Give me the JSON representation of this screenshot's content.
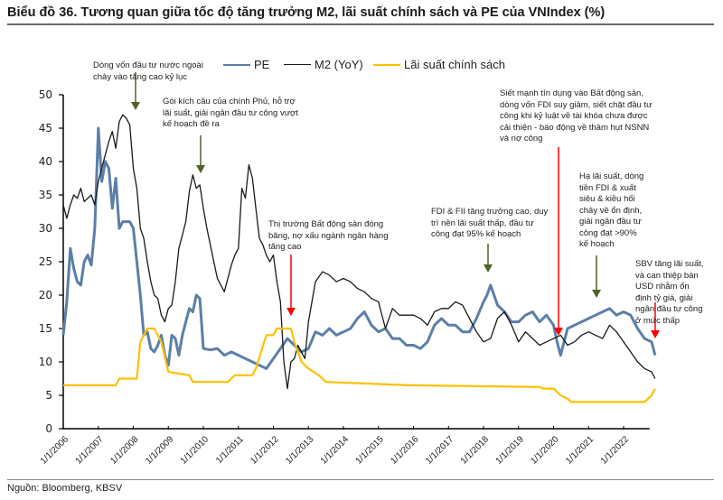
{
  "title": "Biểu đồ 36. Tương quan giữa tốc độ tăng trưởng M2, lãi suất chính sách và PE của VNIndex (%)",
  "source": "Nguồn: Bloomberg, KBSV",
  "chart_data": {
    "type": "line",
    "title": "Biểu đồ 36. Tương quan giữa tốc độ tăng trưởng M2, lãi suất chính sách và PE của VNIndex (%)",
    "xlabel": "",
    "ylabel": "",
    "ylim": [
      0,
      50
    ],
    "yticks": [
      0,
      5,
      10,
      15,
      20,
      25,
      30,
      35,
      40,
      45,
      50
    ],
    "xticks": [
      "1/1/2006",
      "1/1/2007",
      "1/1/2008",
      "1/1/2009",
      "1/1/2010",
      "1/1/2011",
      "1/1/2012",
      "1/1/2013",
      "1/1/2014",
      "1/1/2015",
      "1/1/2016",
      "1/1/2017",
      "1/1/2018",
      "1/1/2019",
      "1/1/2020",
      "1/1/2021",
      "1/1/2022"
    ],
    "xlim": [
      2006.0,
      2023.0
    ],
    "grid": false,
    "legend_position": "top",
    "series": [
      {
        "name": "PE",
        "color": "#5b7fa8",
        "x": [
          2006.0,
          2006.1,
          2006.2,
          2006.3,
          2006.4,
          2006.5,
          2006.6,
          2006.7,
          2006.8,
          2006.9,
          2007.0,
          2007.1,
          2007.2,
          2007.3,
          2007.4,
          2007.5,
          2007.6,
          2007.7,
          2007.8,
          2007.9,
          2008.0,
          2008.1,
          2008.2,
          2008.3,
          2008.4,
          2008.5,
          2008.6,
          2008.7,
          2008.8,
          2008.9,
          2009.0,
          2009.1,
          2009.2,
          2009.3,
          2009.4,
          2009.5,
          2009.6,
          2009.7,
          2009.8,
          2009.9,
          2010.0,
          2010.2,
          2010.4,
          2010.6,
          2010.8,
          2011.0,
          2011.2,
          2011.4,
          2011.6,
          2011.8,
          2012.0,
          2012.2,
          2012.4,
          2012.6,
          2012.8,
          2013.0,
          2013.2,
          2013.4,
          2013.6,
          2013.8,
          2014.0,
          2014.2,
          2014.4,
          2014.6,
          2014.8,
          2015.0,
          2015.2,
          2015.4,
          2015.6,
          2015.8,
          2016.0,
          2016.2,
          2016.4,
          2016.6,
          2016.8,
          2017.0,
          2017.2,
          2017.4,
          2017.6,
          2017.8,
          2018.0,
          2018.1,
          2018.2,
          2018.4,
          2018.6,
          2018.8,
          2019.0,
          2019.2,
          2019.4,
          2019.6,
          2019.8,
          2020.0,
          2020.1,
          2020.2,
          2020.4,
          2020.6,
          2020.8,
          2021.0,
          2021.2,
          2021.4,
          2021.6,
          2021.8,
          2022.0,
          2022.2,
          2022.4,
          2022.6,
          2022.8,
          2022.9
        ],
        "y": [
          14.0,
          19.0,
          27.0,
          24.0,
          22.0,
          21.5,
          25.0,
          26.0,
          24.5,
          30.0,
          45.0,
          37.0,
          40.0,
          39.0,
          33.0,
          37.5,
          30.0,
          31.0,
          31.0,
          31.0,
          30.0,
          25.0,
          20.0,
          14.0,
          14.5,
          12.0,
          11.5,
          12.5,
          14.0,
          11.0,
          9.5,
          14.0,
          13.5,
          11.0,
          14.0,
          16.0,
          18.0,
          17.5,
          20.0,
          19.5,
          12.0,
          11.8,
          12.0,
          11.0,
          11.5,
          11.0,
          10.5,
          10.0,
          9.5,
          9.0,
          10.5,
          12.0,
          13.5,
          12.5,
          11.5,
          12.0,
          14.5,
          14.0,
          15.0,
          14.0,
          14.5,
          15.0,
          16.5,
          17.5,
          15.5,
          14.5,
          15.0,
          13.5,
          13.5,
          12.5,
          12.5,
          12.0,
          13.0,
          15.5,
          16.5,
          15.5,
          15.5,
          14.5,
          14.5,
          16.5,
          19.0,
          20.0,
          21.5,
          18.5,
          17.5,
          16.0,
          16.0,
          17.0,
          17.5,
          16.0,
          17.0,
          15.5,
          13.0,
          11.0,
          15.0,
          15.5,
          16.0,
          16.5,
          17.0,
          17.5,
          18.0,
          17.0,
          17.5,
          17.0,
          15.0,
          13.5,
          13.0,
          11.0
        ]
      },
      {
        "name": "M2 (YoY)",
        "color": "#1a1a1a",
        "x": [
          2006.0,
          2006.1,
          2006.2,
          2006.3,
          2006.4,
          2006.5,
          2006.6,
          2006.7,
          2006.8,
          2006.9,
          2007.0,
          2007.1,
          2007.2,
          2007.3,
          2007.4,
          2007.5,
          2007.6,
          2007.7,
          2007.8,
          2007.9,
          2008.0,
          2008.1,
          2008.2,
          2008.3,
          2008.4,
          2008.5,
          2008.6,
          2008.7,
          2008.8,
          2008.9,
          2009.0,
          2009.1,
          2009.2,
          2009.3,
          2009.4,
          2009.5,
          2009.6,
          2009.7,
          2009.8,
          2009.9,
          2010.0,
          2010.1,
          2010.2,
          2010.3,
          2010.4,
          2010.5,
          2010.6,
          2010.7,
          2010.8,
          2010.9,
          2011.0,
          2011.1,
          2011.2,
          2011.3,
          2011.4,
          2011.5,
          2011.6,
          2011.7,
          2011.8,
          2011.9,
          2012.0,
          2012.1,
          2012.2,
          2012.3,
          2012.4,
          2012.5,
          2012.6,
          2012.7,
          2012.8,
          2012.9,
          2013.0,
          2013.2,
          2013.4,
          2013.6,
          2013.8,
          2014.0,
          2014.2,
          2014.4,
          2014.6,
          2014.8,
          2015.0,
          2015.2,
          2015.4,
          2015.6,
          2015.8,
          2016.0,
          2016.2,
          2016.4,
          2016.6,
          2016.8,
          2017.0,
          2017.2,
          2017.4,
          2017.6,
          2017.8,
          2018.0,
          2018.2,
          2018.4,
          2018.6,
          2018.8,
          2019.0,
          2019.2,
          2019.4,
          2019.6,
          2019.8,
          2020.0,
          2020.2,
          2020.4,
          2020.6,
          2020.8,
          2021.0,
          2021.2,
          2021.4,
          2021.6,
          2021.8,
          2022.0,
          2022.2,
          2022.4,
          2022.6,
          2022.8,
          2022.9
        ],
        "y": [
          33.5,
          31.5,
          33.5,
          35.0,
          34.5,
          36.0,
          34.0,
          34.5,
          35.0,
          33.5,
          37.0,
          39.0,
          41.0,
          43.0,
          44.5,
          42.0,
          46.0,
          47.0,
          46.5,
          45.5,
          39.0,
          36.0,
          30.0,
          28.5,
          25.0,
          22.0,
          20.0,
          19.5,
          17.0,
          16.0,
          18.0,
          18.5,
          22.0,
          27.0,
          29.0,
          31.0,
          35.5,
          38.0,
          36.0,
          36.5,
          33.0,
          30.0,
          27.5,
          25.0,
          22.5,
          21.5,
          20.5,
          22.5,
          24.5,
          26.0,
          27.0,
          36.0,
          34.5,
          39.5,
          37.5,
          33.0,
          28.5,
          27.5,
          26.0,
          25.0,
          26.0,
          22.0,
          19.0,
          10.0,
          6.0,
          10.0,
          10.5,
          12.5,
          11.5,
          10.5,
          16.0,
          22.0,
          23.5,
          23.0,
          22.0,
          22.5,
          22.0,
          21.0,
          20.5,
          19.5,
          19.0,
          15.0,
          18.0,
          17.0,
          17.0,
          17.0,
          16.5,
          15.5,
          17.5,
          18.0,
          18.0,
          19.0,
          18.5,
          16.5,
          14.5,
          13.0,
          13.5,
          16.5,
          17.5,
          15.5,
          13.0,
          14.5,
          13.5,
          12.5,
          13.0,
          13.5,
          14.0,
          12.5,
          13.0,
          14.0,
          14.5,
          14.0,
          13.5,
          15.5,
          14.5,
          13.0,
          11.5,
          10.0,
          9.0,
          8.5,
          7.5
        ]
      },
      {
        "name": "Lãi suất chính sách",
        "color": "#ffc000",
        "x": [
          2006.0,
          2007.0,
          2007.1,
          2007.5,
          2007.6,
          2007.7,
          2008.1,
          2008.2,
          2008.4,
          2008.5,
          2008.6,
          2008.7,
          2008.8,
          2009.0,
          2009.6,
          2009.7,
          2010.7,
          2010.9,
          2011.1,
          2011.4,
          2011.5,
          2011.8,
          2012.0,
          2012.1,
          2012.3,
          2012.5,
          2012.6,
          2012.8,
          2013.0,
          2013.3,
          2013.5,
          2015.9,
          2016.0,
          2019.6,
          2019.7,
          2020.0,
          2020.2,
          2020.4,
          2020.5,
          2020.8,
          2022.6,
          2022.8,
          2022.9
        ],
        "y": [
          6.5,
          6.5,
          6.5,
          6.5,
          7.5,
          7.5,
          7.5,
          13.0,
          15.0,
          15.0,
          15.0,
          14.0,
          13.0,
          8.5,
          8.0,
          7.0,
          7.0,
          8.0,
          8.0,
          8.0,
          9.0,
          14.0,
          14.0,
          15.0,
          15.0,
          15.0,
          13.0,
          10.0,
          9.0,
          8.0,
          7.0,
          6.5,
          6.5,
          6.25,
          6.0,
          6.0,
          5.0,
          4.5,
          4.0,
          4.0,
          4.0,
          5.0,
          6.0
        ]
      }
    ],
    "annotations": [
      {
        "text": "Dòng vốn đầu tư nước ngoài chảy vào tăng cao kỷ lục",
        "arrow_color": "green",
        "x": 2008.0
      },
      {
        "text": "Gói kích cầu của chính Phủ, hỗ trợ lãi suất, giải ngân đầu tư công vượt kế hoạch đề ra",
        "arrow_color": "green",
        "x": 2010.0
      },
      {
        "text": "Thị trường Bất động sản đóng băng, nợ xấu ngành ngân hàng tăng cao",
        "arrow_color": "red",
        "x": 2012.25
      },
      {
        "text": "FDI & FII tăng trưởng cao, duy trì nền lãi suất thấp, đầu tư công đạt 95% kế hoạch",
        "arrow_color": "green",
        "x": 2018.3
      },
      {
        "text": "Siết mạnh tín dụng vào Bất động sản, dòng vốn FDI suy giảm, siết chặt đầu tư công khi kỷ luật về tài khóa chưa được cải thiện - báo động về thâm hụt NSNN và nợ công",
        "arrow_color": "red",
        "x": 2020.35
      },
      {
        "text": "Hạ lãi suất, dòng tiền FDI & xuất siêu & kiều hối chảy về ổn định, giải ngân đầu tư công đạt >90% kế hoạch",
        "arrow_color": "green",
        "x": 2021.5
      },
      {
        "text": "SBV tăng lãi suất, và can thiệp bán USD nhằm ổn định tỷ giá, giải ngân đầu tư công ở mức thấp",
        "arrow_color": "red",
        "x": 2023.0
      }
    ]
  },
  "legend": {
    "pe": "PE",
    "m2": "M2 (YoY)",
    "rate": "Lãi suất chính sách"
  },
  "annotations_text": {
    "a1": [
      "Dòng vốn đầu tư nước ngoài",
      "chảy vào tăng cao kỷ lục"
    ],
    "a2": [
      "Gói kích cầu của chính Phủ, hỗ trợ",
      "lãi suất, giải ngân đầu tư công vượt",
      "kế hoạch đề ra"
    ],
    "a3": [
      "Thị trường Bất động sản đóng",
      "băng, nợ xấu ngành ngân hàng",
      "tăng cao"
    ],
    "a4": [
      "FDI & FII tăng trưởng cao, duy",
      "trì nền lãi suất thấp, đầu tư",
      "công đạt 95% kế hoạch"
    ],
    "a5": [
      "Siết mạnh tín dụng  vào Bất động sản,",
      "dòng vốn FDI suy giảm, siết chặt đầu tư",
      "công khi kỷ luật về tài khóa chưa được",
      "cải thiện - báo động về thâm hụt NSNN",
      "và nợ công"
    ],
    "a6": [
      "Hạ lãi suất, dòng",
      "tiền FDI & xuất",
      "siêu & kiều hối",
      "chảy về ổn định,",
      "giải  ngân đầu tư",
      "công đạt >90%",
      "kế hoạch"
    ],
    "a7": [
      "SBV tăng lãi suất,",
      "và can thiệp bán",
      "USD nhằm ổn",
      "định tỷ giá, giải",
      "ngân đầu tư công",
      "ở mức thấp"
    ]
  },
  "colors": {
    "green_arrow": "#4f6228",
    "red_arrow": "#ff0000"
  }
}
